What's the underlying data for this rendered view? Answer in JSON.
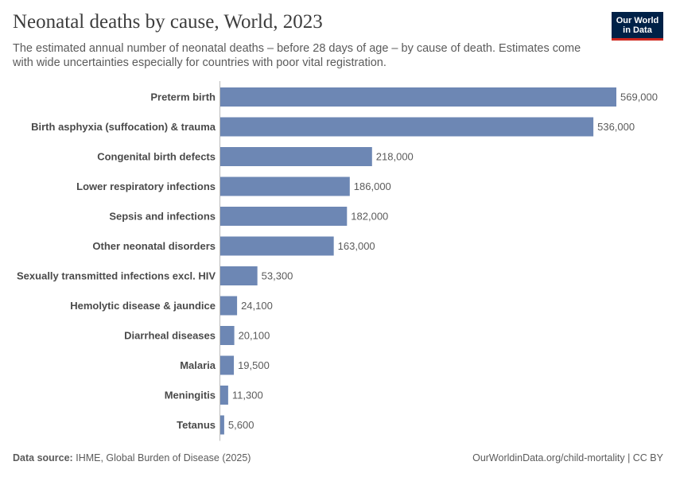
{
  "chart_data": {
    "type": "bar",
    "orientation": "horizontal",
    "title": "Neonatal deaths by cause, World, 2023",
    "subtitle": "The estimated annual number of neonatal deaths – before 28 days of age – by cause of death. Estimates come with wide uncertainties especially for countries with poor vital registration.",
    "categories": [
      "Preterm birth",
      "Birth asphyxia (suffocation) & trauma",
      "Congenital birth defects",
      "Lower respiratory infections",
      "Sepsis and infections",
      "Other neonatal disorders",
      "Sexually transmitted infections excl. HIV",
      "Hemolytic disease & jaundice",
      "Diarrheal diseases",
      "Malaria",
      "Meningitis",
      "Tetanus"
    ],
    "values": [
      569000,
      536000,
      218000,
      186000,
      182000,
      163000,
      53300,
      24100,
      20100,
      19500,
      11300,
      5600
    ],
    "value_labels": [
      "569,000",
      "536,000",
      "218,000",
      "186,000",
      "182,000",
      "163,000",
      "53,300",
      "24,100",
      "20,100",
      "19,500",
      "11,300",
      "5,600"
    ],
    "color": "#6d87b4",
    "logo": [
      "Our World",
      "in Data"
    ],
    "source_label": "Data source:",
    "source": "IHME, Global Burden of Disease (2025)",
    "footer_right": "OurWorldinData.org/child-mortality | CC BY"
  }
}
